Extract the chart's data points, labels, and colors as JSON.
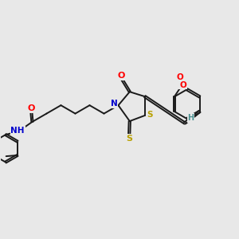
{
  "bg_color": "#e8e8e8",
  "atom_colors": {
    "O": "#ff0000",
    "N": "#0000cc",
    "S": "#b8a000",
    "H": "#4a9090",
    "C": "#1a1a1a"
  },
  "bond_color": "#1a1a1a",
  "lw": 1.4
}
